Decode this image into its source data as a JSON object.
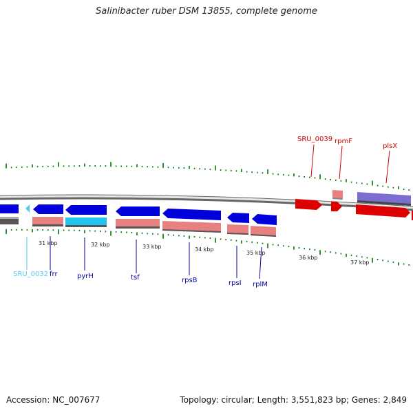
{
  "title": "Salinibacter ruber DSM 13855, complete genome",
  "footer": {
    "accession": "Accession: NC_007677",
    "summary": "Topology: circular; Length: 3,551,823 bp; Genes: 2,849"
  },
  "colors": {
    "forward_cds": "#dd0000",
    "reverse_cds": "#0000dd",
    "forward_rna": "#e88080",
    "reverse_rna": "#e88080",
    "other_forward": "#7a6fd0",
    "other_reverse": "#22c4ee",
    "sru0032": "#55ccee",
    "backbone": "#888888",
    "tick": "#007700"
  },
  "ruler_labels": [
    "31 kbp",
    "32 kbp",
    "33 kbp",
    "34 kbp",
    "35 kbp",
    "36 kbp",
    "37 kbp"
  ],
  "genes": [
    {
      "name": "SRU_0032",
      "color": "#55ccee"
    },
    {
      "name": "frr",
      "color": "#000099"
    },
    {
      "name": "pyrH",
      "color": "#000099"
    },
    {
      "name": "tsf",
      "color": "#000099"
    },
    {
      "name": "rpsB",
      "color": "#000099"
    },
    {
      "name": "rpsI",
      "color": "#000099"
    },
    {
      "name": "rplM",
      "color": "#000099"
    },
    {
      "name": "SRU_0039",
      "color": "#cc0000"
    },
    {
      "name": "rpmF",
      "color": "#cc0000"
    },
    {
      "name": "plsX",
      "color": "#cc0000"
    }
  ]
}
